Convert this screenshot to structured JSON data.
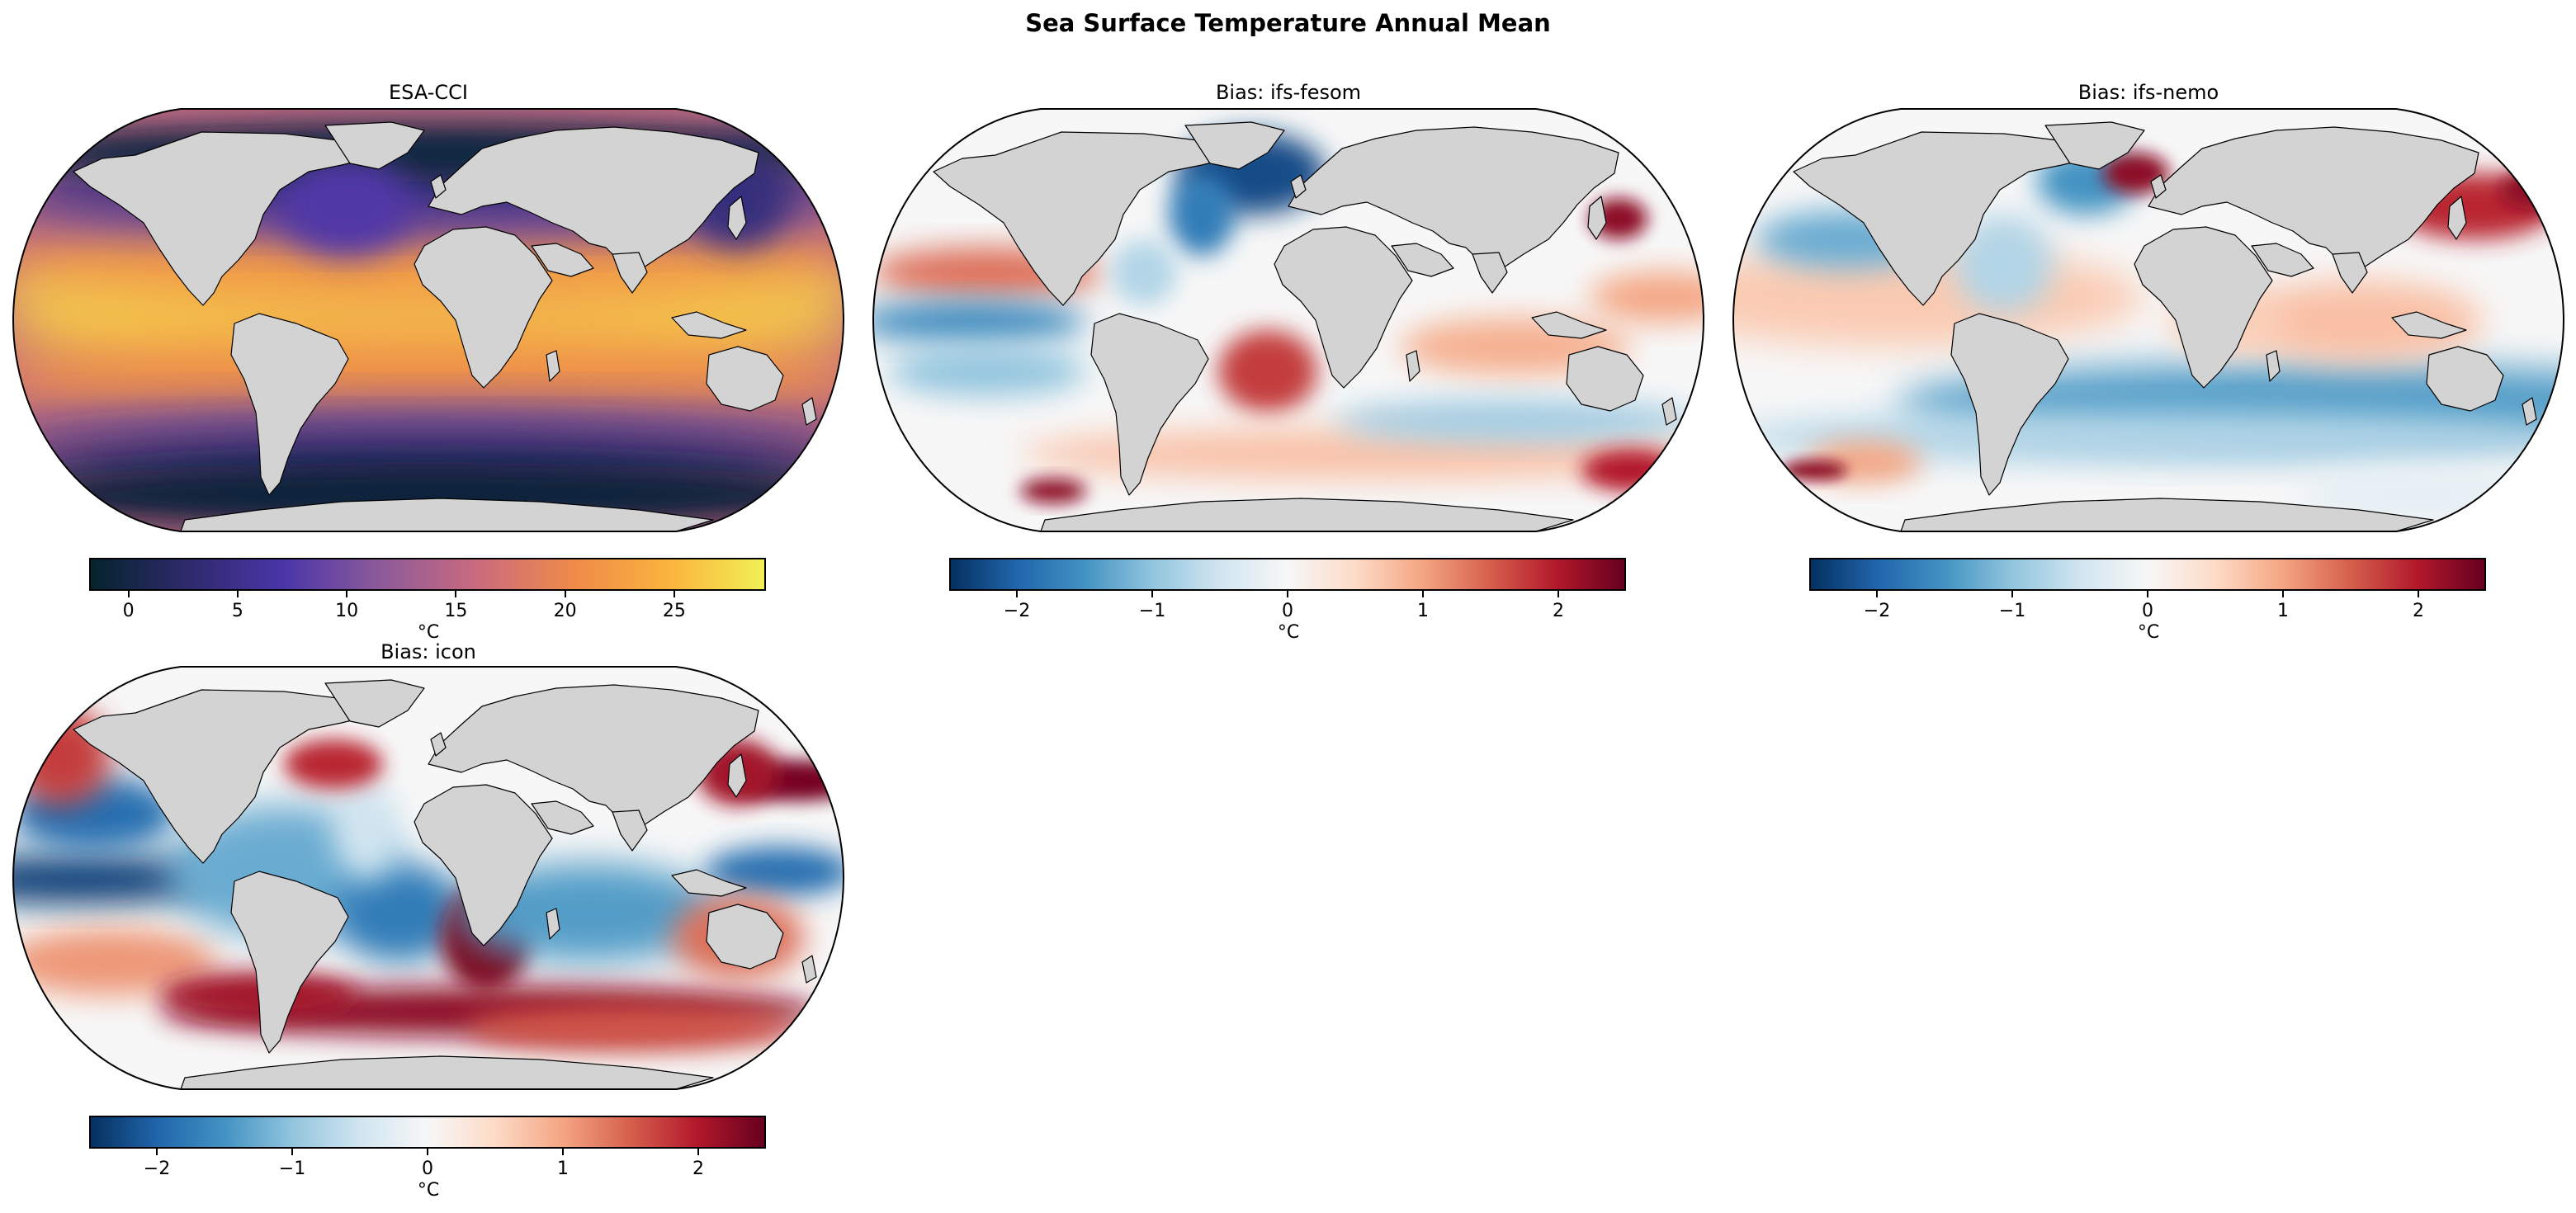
{
  "figure": {
    "title": "Sea Surface Temperature Annual Mean"
  },
  "colors": {
    "land": "#d3d3d3",
    "thermal": [
      "#04232e",
      "#2e2a6b",
      "#4a35a8",
      "#8c5a9a",
      "#c96a7f",
      "#ee8a4a",
      "#fbb33c",
      "#f2ef56"
    ],
    "rdbu_r": [
      "#053061",
      "#2166ac",
      "#4393c3",
      "#92c5de",
      "#d1e5f0",
      "#f7f7f7",
      "#fddbc7",
      "#f4a582",
      "#d6604d",
      "#b2182b",
      "#67001f"
    ]
  },
  "panels": [
    {
      "title": "ESA-CCI",
      "colormap": "thermal",
      "unit": "°C",
      "range": [
        -1.8,
        29.2
      ],
      "ticks": [
        "0",
        "5",
        "10",
        "15",
        "20",
        "25"
      ],
      "tick_values": [
        0,
        5,
        10,
        15,
        20,
        25
      ]
    },
    {
      "title": "Bias: ifs-fesom",
      "colormap": "rdbu_r",
      "unit": "°C",
      "range": [
        -2.5,
        2.5
      ],
      "ticks": [
        "−2",
        "−1",
        "0",
        "1",
        "2"
      ],
      "tick_values": [
        -2,
        -1,
        0,
        1,
        2
      ]
    },
    {
      "title": "Bias: ifs-nemo",
      "colormap": "rdbu_r",
      "unit": "°C",
      "range": [
        -2.5,
        2.5
      ],
      "ticks": [
        "−2",
        "−1",
        "0",
        "1",
        "2"
      ],
      "tick_values": [
        -2,
        -1,
        0,
        1,
        2
      ]
    },
    {
      "title": "Bias: icon",
      "colormap": "rdbu_r",
      "unit": "°C",
      "range": [
        -2.5,
        2.5
      ],
      "ticks": [
        "−2",
        "−1",
        "0",
        "1",
        "2"
      ],
      "tick_values": [
        -2,
        -1,
        0,
        1,
        2
      ]
    }
  ]
}
